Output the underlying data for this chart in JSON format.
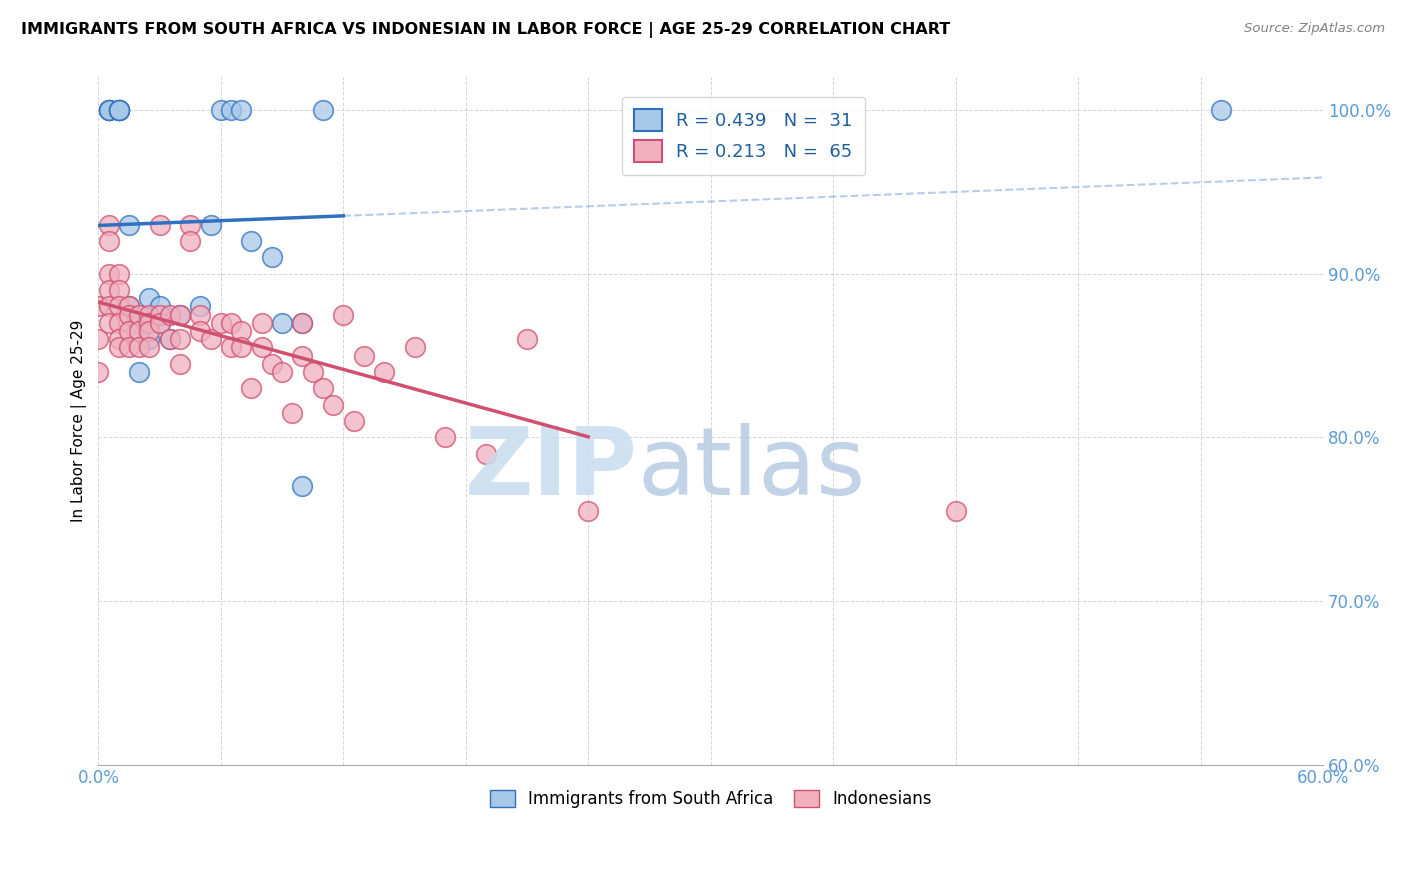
{
  "title": "IMMIGRANTS FROM SOUTH AFRICA VS INDONESIAN IN LABOR FORCE | AGE 25-29 CORRELATION CHART",
  "source": "Source: ZipAtlas.com",
  "ylabel": "In Labor Force | Age 25-29",
  "xlim": [
    0.0,
    0.6
  ],
  "ylim": [
    0.6,
    1.02
  ],
  "xticks": [
    0.0,
    0.06,
    0.12,
    0.18,
    0.24,
    0.3,
    0.36,
    0.42,
    0.48,
    0.54,
    0.6
  ],
  "xticklabels": [
    "0.0%",
    "",
    "",
    "",
    "",
    "",
    "",
    "",
    "",
    "",
    "60.0%"
  ],
  "ytick_positions": [
    0.6,
    0.7,
    0.8,
    0.9,
    1.0
  ],
  "ytick_labels": [
    "60.0%",
    "70.0%",
    "80.0%",
    "90.0%",
    "100.0%"
  ],
  "R_sa": 0.439,
  "N_sa": 31,
  "R_id": 0.213,
  "N_id": 65,
  "color_sa": "#A8C8E8",
  "color_id": "#F0B0C0",
  "trend_color_sa": "#3070C0",
  "trend_color_id": "#D05070",
  "south_africa_x": [
    0.005,
    0.005,
    0.005,
    0.005,
    0.01,
    0.01,
    0.01,
    0.01,
    0.01,
    0.015,
    0.015,
    0.02,
    0.02,
    0.025,
    0.025,
    0.03,
    0.03,
    0.035,
    0.04,
    0.05,
    0.055,
    0.06,
    0.065,
    0.07,
    0.075,
    0.085,
    0.09,
    0.1,
    0.1,
    0.11,
    0.55
  ],
  "south_africa_y": [
    1.0,
    1.0,
    1.0,
    1.0,
    1.0,
    1.0,
    1.0,
    1.0,
    1.0,
    0.93,
    0.88,
    0.87,
    0.84,
    0.885,
    0.86,
    0.88,
    0.87,
    0.86,
    0.875,
    0.88,
    0.93,
    1.0,
    1.0,
    1.0,
    0.92,
    0.91,
    0.87,
    0.87,
    0.77,
    1.0,
    1.0
  ],
  "indonesian_x": [
    0.0,
    0.0,
    0.0,
    0.005,
    0.005,
    0.005,
    0.005,
    0.005,
    0.005,
    0.01,
    0.01,
    0.01,
    0.01,
    0.01,
    0.01,
    0.015,
    0.015,
    0.015,
    0.015,
    0.02,
    0.02,
    0.02,
    0.025,
    0.025,
    0.025,
    0.025,
    0.03,
    0.03,
    0.03,
    0.035,
    0.035,
    0.04,
    0.04,
    0.04,
    0.045,
    0.045,
    0.05,
    0.05,
    0.055,
    0.06,
    0.065,
    0.065,
    0.07,
    0.07,
    0.075,
    0.08,
    0.08,
    0.085,
    0.09,
    0.095,
    0.1,
    0.1,
    0.105,
    0.11,
    0.115,
    0.12,
    0.125,
    0.13,
    0.14,
    0.155,
    0.17,
    0.19,
    0.21,
    0.24,
    0.42
  ],
  "indonesian_y": [
    0.88,
    0.86,
    0.84,
    0.93,
    0.92,
    0.9,
    0.89,
    0.88,
    0.87,
    0.9,
    0.89,
    0.88,
    0.87,
    0.86,
    0.855,
    0.88,
    0.875,
    0.865,
    0.855,
    0.875,
    0.865,
    0.855,
    0.875,
    0.87,
    0.865,
    0.855,
    0.93,
    0.875,
    0.87,
    0.875,
    0.86,
    0.875,
    0.86,
    0.845,
    0.93,
    0.92,
    0.875,
    0.865,
    0.86,
    0.87,
    0.87,
    0.855,
    0.865,
    0.855,
    0.83,
    0.87,
    0.855,
    0.845,
    0.84,
    0.815,
    0.87,
    0.85,
    0.84,
    0.83,
    0.82,
    0.875,
    0.81,
    0.85,
    0.84,
    0.855,
    0.8,
    0.79,
    0.86,
    0.755,
    0.755
  ]
}
